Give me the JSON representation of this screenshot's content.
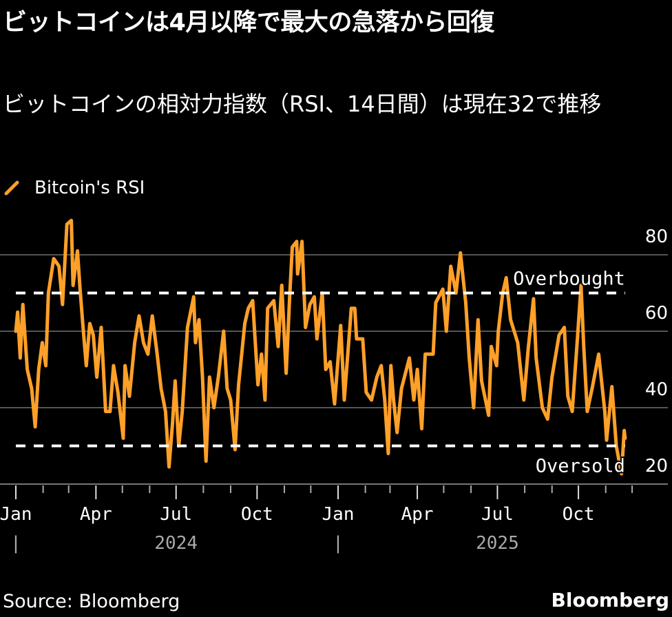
{
  "title": "ビットコインは4月以降で最大の急落から回復",
  "subtitle": "ビットコインの相対力指数（RSI、14日間）は現在32で推移",
  "source": "Source: Bloomberg",
  "logo": "Bloomberg",
  "colors": {
    "series": "#FFA028",
    "background": "#000000",
    "grid": "#555555",
    "reference": "#FFFFFF"
  },
  "legend_icon": "diagonal-line-icon",
  "chart_data": {
    "type": "line",
    "title": "",
    "xlabel": "",
    "ylabel": "",
    "ylim": [
      20,
      90
    ],
    "xlim": [
      "2024-01-01",
      "2025-11-23"
    ],
    "grid": true,
    "legend_placement": "top-left",
    "y_ticks": [
      20,
      40,
      60,
      80
    ],
    "y_tick_labels": [
      "20",
      "40",
      "60",
      "80"
    ],
    "x_ticks": [
      {
        "date": "2024-01-01",
        "label": "Jan"
      },
      {
        "date": "2024-04-01",
        "label": "Apr"
      },
      {
        "date": "2024-07-01",
        "label": "Jul"
      },
      {
        "date": "2024-10-01",
        "label": "Oct"
      },
      {
        "date": "2025-01-01",
        "label": "Jan"
      },
      {
        "date": "2025-04-01",
        "label": "Apr"
      },
      {
        "date": "2025-07-01",
        "label": "Jul"
      },
      {
        "date": "2025-10-01",
        "label": "Oct"
      }
    ],
    "years": [
      {
        "date": "2024-07-01",
        "label": "2024",
        "marker_date": "2024-01-01",
        "marker": "|"
      },
      {
        "date": "2025-07-01",
        "label": "2025",
        "marker_date": "2025-01-01",
        "marker": "|"
      }
    ],
    "reference_lines": [
      {
        "value": 70,
        "label": "Overbought"
      },
      {
        "value": 30,
        "label": "Oversold"
      }
    ],
    "series": [
      {
        "name": "Bitcoin's RSI",
        "points": [
          [
            "2024-01-01",
            60
          ],
          [
            "2024-01-03",
            65
          ],
          [
            "2024-01-06",
            53
          ],
          [
            "2024-01-09",
            67
          ],
          [
            "2024-01-11",
            60
          ],
          [
            "2024-01-14",
            50
          ],
          [
            "2024-01-19",
            45
          ],
          [
            "2024-01-23",
            35
          ],
          [
            "2024-01-27",
            50
          ],
          [
            "2024-01-31",
            57
          ],
          [
            "2024-02-04",
            51
          ],
          [
            "2024-02-07",
            70
          ],
          [
            "2024-02-13",
            79
          ],
          [
            "2024-02-19",
            77
          ],
          [
            "2024-02-23",
            67
          ],
          [
            "2024-02-28",
            88
          ],
          [
            "2024-03-04",
            89
          ],
          [
            "2024-03-06",
            72
          ],
          [
            "2024-03-11",
            81
          ],
          [
            "2024-03-14",
            71
          ],
          [
            "2024-03-17",
            62
          ],
          [
            "2024-03-21",
            51
          ],
          [
            "2024-03-25",
            62
          ],
          [
            "2024-03-29",
            59
          ],
          [
            "2024-04-02",
            48
          ],
          [
            "2024-04-07",
            61
          ],
          [
            "2024-04-12",
            39
          ],
          [
            "2024-04-17",
            39
          ],
          [
            "2024-04-21",
            51
          ],
          [
            "2024-04-26",
            44
          ],
          [
            "2024-05-02",
            32
          ],
          [
            "2024-05-04",
            51
          ],
          [
            "2024-05-09",
            43
          ],
          [
            "2024-05-15",
            57
          ],
          [
            "2024-05-20",
            64
          ],
          [
            "2024-05-25",
            57
          ],
          [
            "2024-05-30",
            54
          ],
          [
            "2024-06-04",
            64
          ],
          [
            "2024-06-09",
            55
          ],
          [
            "2024-06-14",
            45
          ],
          [
            "2024-06-19",
            39
          ],
          [
            "2024-06-23",
            24.5
          ],
          [
            "2024-06-27",
            36
          ],
          [
            "2024-06-30",
            47
          ],
          [
            "2024-07-04",
            30
          ],
          [
            "2024-07-08",
            39
          ],
          [
            "2024-07-14",
            61
          ],
          [
            "2024-07-21",
            69
          ],
          [
            "2024-07-23",
            57
          ],
          [
            "2024-07-27",
            63
          ],
          [
            "2024-07-31",
            48
          ],
          [
            "2024-08-04",
            26
          ],
          [
            "2024-08-08",
            48
          ],
          [
            "2024-08-13",
            40
          ],
          [
            "2024-08-18",
            48
          ],
          [
            "2024-08-24",
            60
          ],
          [
            "2024-08-28",
            45
          ],
          [
            "2024-09-01",
            42
          ],
          [
            "2024-09-06",
            29
          ],
          [
            "2024-09-10",
            46
          ],
          [
            "2024-09-14",
            55
          ],
          [
            "2024-09-17",
            62
          ],
          [
            "2024-09-21",
            66
          ],
          [
            "2024-09-26",
            68
          ],
          [
            "2024-10-02",
            46
          ],
          [
            "2024-10-06",
            54
          ],
          [
            "2024-10-10",
            42
          ],
          [
            "2024-10-13",
            66
          ],
          [
            "2024-10-20",
            68
          ],
          [
            "2024-10-25",
            56
          ],
          [
            "2024-10-29",
            72
          ],
          [
            "2024-11-03",
            49
          ],
          [
            "2024-11-07",
            69
          ],
          [
            "2024-11-10",
            82
          ],
          [
            "2024-11-15",
            83.5
          ],
          [
            "2024-11-16",
            75
          ],
          [
            "2024-11-21",
            83.5
          ],
          [
            "2024-11-25",
            61
          ],
          [
            "2024-11-30",
            67
          ],
          [
            "2024-12-05",
            69
          ],
          [
            "2024-12-08",
            58
          ],
          [
            "2024-12-14",
            70
          ],
          [
            "2024-12-18",
            50
          ],
          [
            "2024-12-23",
            52
          ],
          [
            "2024-12-28",
            41
          ],
          [
            "2025-01-04",
            61.5
          ],
          [
            "2025-01-08",
            42
          ],
          [
            "2025-01-16",
            66
          ],
          [
            "2025-01-20",
            66
          ],
          [
            "2025-01-22",
            58
          ],
          [
            "2025-01-29",
            58
          ],
          [
            "2025-02-02",
            44
          ],
          [
            "2025-02-08",
            42
          ],
          [
            "2025-02-14",
            48
          ],
          [
            "2025-02-19",
            51
          ],
          [
            "2025-02-23",
            42
          ],
          [
            "2025-02-27",
            28
          ],
          [
            "2025-03-02",
            51
          ],
          [
            "2025-03-05",
            42
          ],
          [
            "2025-03-09",
            33.5
          ],
          [
            "2025-03-14",
            45
          ],
          [
            "2025-03-23",
            53
          ],
          [
            "2025-03-28",
            42
          ],
          [
            "2025-04-01",
            50
          ],
          [
            "2025-04-06",
            34.5
          ],
          [
            "2025-04-10",
            54
          ],
          [
            "2025-04-19",
            54
          ],
          [
            "2025-04-22",
            67.5
          ],
          [
            "2025-04-30",
            71
          ],
          [
            "2025-05-04",
            60
          ],
          [
            "2025-05-09",
            77
          ],
          [
            "2025-05-15",
            70
          ],
          [
            "2025-05-20",
            80.5
          ],
          [
            "2025-05-26",
            67.5
          ],
          [
            "2025-05-30",
            53
          ],
          [
            "2025-06-04",
            40
          ],
          [
            "2025-06-09",
            63
          ],
          [
            "2025-06-13",
            47
          ],
          [
            "2025-06-21",
            38
          ],
          [
            "2025-06-24",
            56
          ],
          [
            "2025-06-30",
            51
          ],
          [
            "2025-07-02",
            60
          ],
          [
            "2025-07-07",
            70
          ],
          [
            "2025-07-11",
            74
          ],
          [
            "2025-07-16",
            63
          ],
          [
            "2025-07-24",
            57
          ],
          [
            "2025-07-31",
            42
          ],
          [
            "2025-08-05",
            55.5
          ],
          [
            "2025-08-11",
            68.5
          ],
          [
            "2025-08-14",
            53
          ],
          [
            "2025-08-21",
            40
          ],
          [
            "2025-08-27",
            37
          ],
          [
            "2025-09-01",
            48
          ],
          [
            "2025-09-09",
            59
          ],
          [
            "2025-09-15",
            61
          ],
          [
            "2025-09-19",
            43
          ],
          [
            "2025-09-24",
            39
          ],
          [
            "2025-09-30",
            58.5
          ],
          [
            "2025-10-04",
            72
          ],
          [
            "2025-10-07",
            56
          ],
          [
            "2025-10-11",
            39
          ],
          [
            "2025-10-17",
            45.5
          ],
          [
            "2025-10-24",
            54
          ],
          [
            "2025-10-31",
            39
          ],
          [
            "2025-11-02",
            31.5
          ],
          [
            "2025-11-08",
            45.5
          ],
          [
            "2025-11-13",
            30
          ],
          [
            "2025-11-17",
            25
          ],
          [
            "2025-11-19",
            22.7
          ],
          [
            "2025-11-22",
            34
          ],
          [
            "2025-11-23",
            32
          ]
        ]
      }
    ]
  }
}
